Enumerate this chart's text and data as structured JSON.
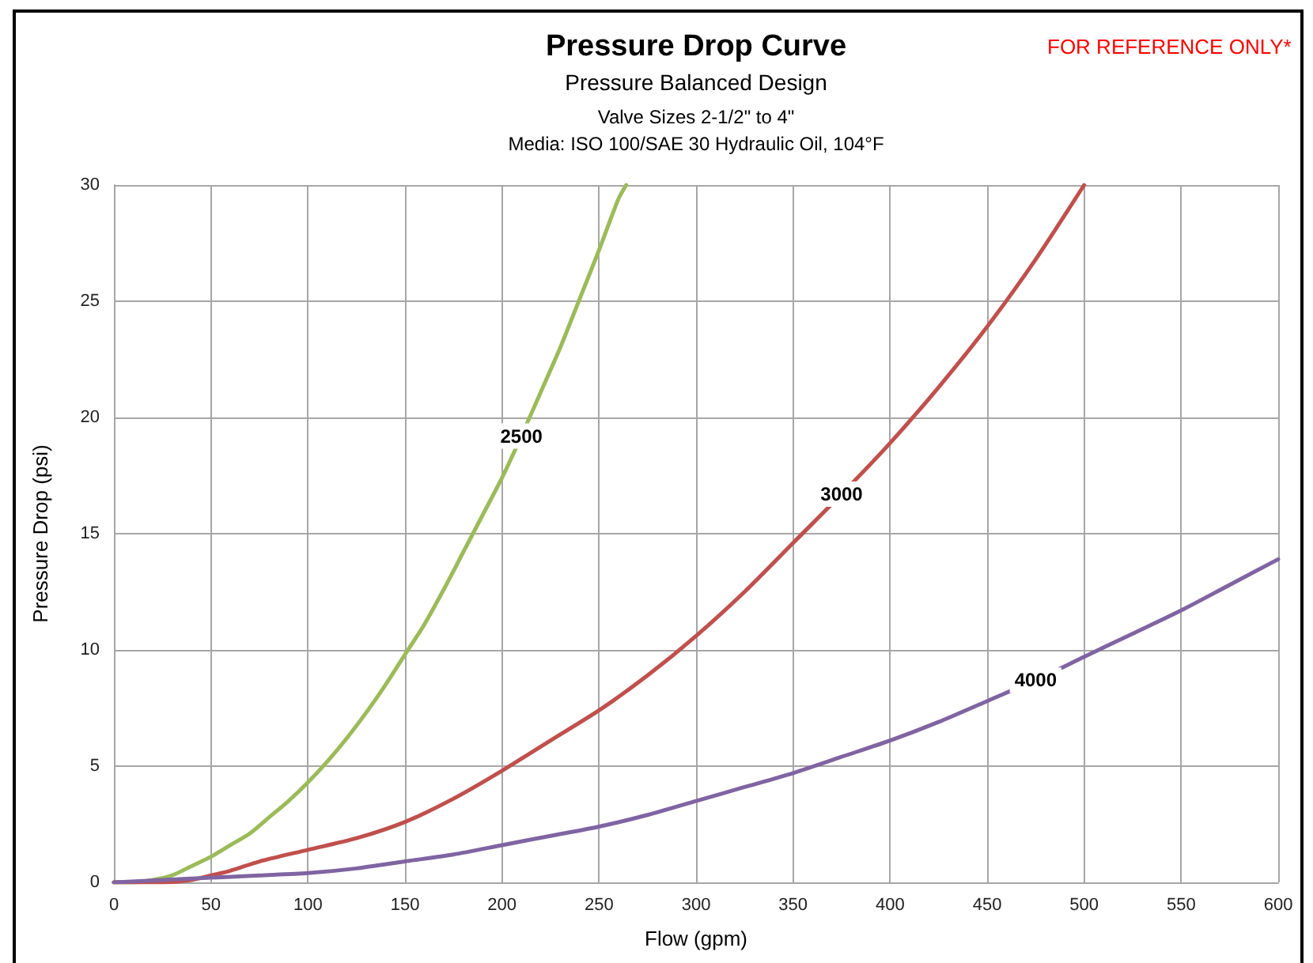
{
  "chart_data": {
    "type": "line",
    "title": "Pressure Drop Curve",
    "subtitle": "Pressure Balanced Design\nValve Sizes 2-1/2\" to 4\"\nMedia: ISO 100/SAE 30 Hydraulic Oil, 104°F",
    "xlabel": "Flow (gpm)",
    "ylabel": "Pressure Drop (psi)",
    "annotations": [
      "FOR REFERENCE ONLY*"
    ],
    "xlim": [
      0,
      600
    ],
    "xticks": [
      0,
      50,
      100,
      150,
      200,
      250,
      300,
      350,
      400,
      450,
      500,
      550,
      600
    ],
    "ylim": [
      0,
      30
    ],
    "yticks": [
      0,
      5,
      10,
      15,
      20,
      25,
      30
    ],
    "grid": true,
    "marker": "none",
    "line_style": "solid",
    "series": [
      {
        "name": "2500",
        "color": "#9bbb59",
        "x": [
          0,
          10,
          20,
          30,
          40,
          50,
          60,
          70,
          80,
          90,
          100,
          110,
          120,
          130,
          140,
          150,
          160,
          170,
          180,
          190,
          200,
          210,
          220,
          230,
          240,
          250,
          260,
          264
        ],
        "values": [
          0,
          0,
          0.1,
          0.3,
          0.7,
          1.1,
          1.6,
          2.1,
          2.8,
          3.5,
          4.3,
          5.2,
          6.2,
          7.3,
          8.5,
          9.8,
          11.1,
          12.6,
          14.2,
          15.8,
          17.4,
          19.2,
          21.1,
          23.0,
          25.1,
          27.2,
          29.4,
          30
        ]
      },
      {
        "name": "3000",
        "color": "#c0504d",
        "x": [
          0,
          25,
          40,
          50,
          60,
          75,
          100,
          125,
          150,
          175,
          200,
          225,
          250,
          275,
          300,
          325,
          350,
          375,
          400,
          425,
          450,
          475,
          500
        ],
        "values": [
          0,
          0,
          0.1,
          0.3,
          0.5,
          0.9,
          1.4,
          1.9,
          2.6,
          3.6,
          4.8,
          6.1,
          7.4,
          8.9,
          10.6,
          12.5,
          14.6,
          16.7,
          18.9,
          21.3,
          23.9,
          26.8,
          30
        ]
      },
      {
        "name": "4000",
        "color": "#8064a2",
        "x": [
          0,
          25,
          50,
          75,
          100,
          125,
          150,
          175,
          200,
          225,
          250,
          275,
          300,
          325,
          350,
          375,
          400,
          425,
          450,
          475,
          500,
          525,
          550,
          575,
          600
        ],
        "values": [
          0,
          0.1,
          0.2,
          0.3,
          0.4,
          0.6,
          0.9,
          1.2,
          1.6,
          2.0,
          2.4,
          2.9,
          3.5,
          4.1,
          4.7,
          5.4,
          6.1,
          6.9,
          7.8,
          8.7,
          9.7,
          10.7,
          11.7,
          12.8,
          13.9
        ]
      }
    ]
  }
}
